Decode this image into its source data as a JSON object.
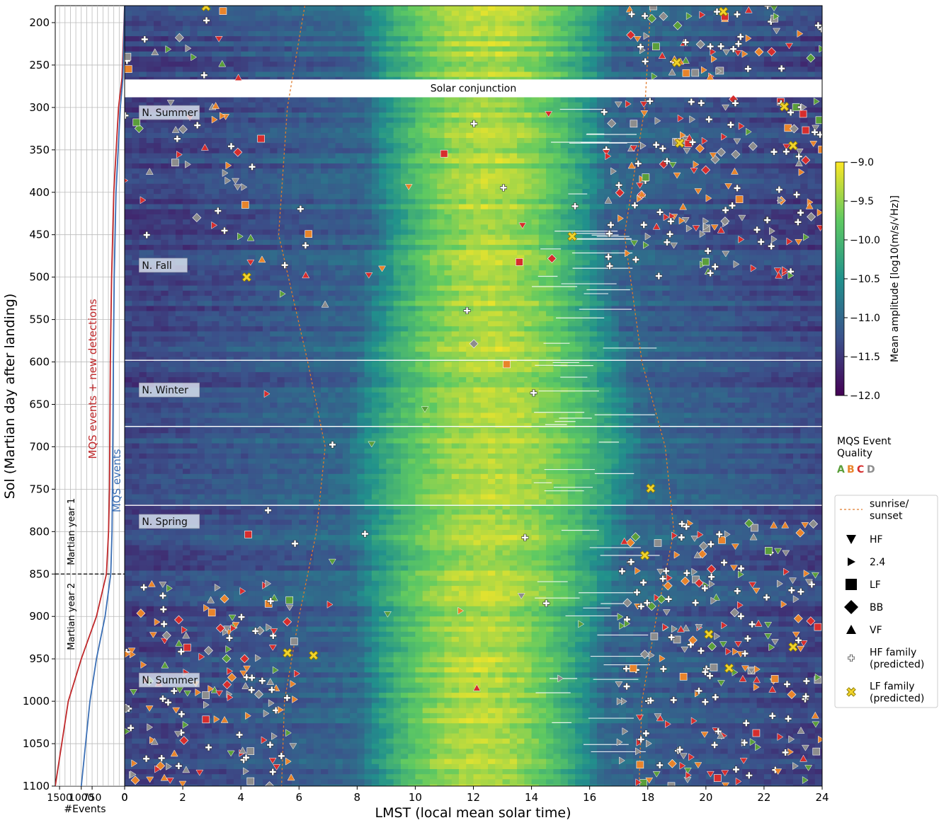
{
  "chart_data": [
    {
      "type": "heatmap",
      "title": "",
      "xlabel": "LMST (local mean solar time)",
      "ylabel": "Sol (Martian day after landing)",
      "xlim": [
        0,
        24
      ],
      "ylim": [
        1100,
        180
      ],
      "x_ticks": [
        0,
        2,
        4,
        6,
        8,
        10,
        12,
        14,
        16,
        18,
        20,
        22,
        24
      ],
      "y_ticks": [
        200,
        250,
        300,
        350,
        400,
        450,
        500,
        550,
        600,
        650,
        700,
        750,
        800,
        850,
        900,
        950,
        1000,
        1050,
        1100
      ],
      "colorbar": {
        "label": "Mean amplitude [log10(m/s/√Hz)]",
        "range": [
          -12.0,
          -9.0
        ],
        "ticks": [
          "-9.0",
          "-9.5",
          "-10.0",
          "-10.5",
          "-11.0",
          "-11.5",
          "-12.0"
        ],
        "colormap": [
          "#440154",
          "#3b528b",
          "#21918c",
          "#5ec962",
          "#fde725"
        ]
      },
      "quiet_window_lmst": {
        "at_sol_200": [
          8.0,
          17.0
        ],
        "at_sol_450": [
          8.5,
          16.5
        ],
        "at_sol_700": [
          7.5,
          18.0
        ],
        "at_sol_950": [
          8.0,
          16.5
        ]
      },
      "gaps": {
        "solar_conjunction_sols": [
          267,
          288
        ]
      },
      "annotations": [
        {
          "text": "Solar conjunction",
          "x": 12,
          "y": 277
        },
        {
          "text": "N. Summer",
          "x": 0.3,
          "y": 306
        },
        {
          "text": "N. Fall",
          "x": 0.3,
          "y": 486
        },
        {
          "text": "N. Winter",
          "x": 0.3,
          "y": 633
        },
        {
          "text": "N. Spring",
          "x": 0.3,
          "y": 788
        },
        {
          "text": "N. Summer",
          "x": 0.3,
          "y": 975
        }
      ],
      "sunrise_sunset": {
        "name": "sunrise/\nsunset",
        "color": "#e07a2a",
        "sol": [
          180,
          300,
          450,
          600,
          700,
          800,
          900,
          1000,
          1100
        ],
        "sunrise": [
          6.2,
          5.6,
          5.3,
          6.3,
          6.9,
          6.6,
          6.0,
          5.5,
          5.4
        ],
        "sunset": [
          18.1,
          17.9,
          17.2,
          17.8,
          18.6,
          18.9,
          18.3,
          17.8,
          17.7
        ]
      },
      "quality": {
        "title": "MQS Event\nQuality",
        "labels": [
          "A",
          "B",
          "C",
          "D"
        ],
        "colors": [
          "#5a9e3a",
          "#e8842b",
          "#d62d2d",
          "#8d8d8d"
        ]
      },
      "legend": [
        {
          "label": "sunrise/\nsunset",
          "marker": "dashed-line"
        },
        {
          "label": "HF",
          "marker": "triangle-down"
        },
        {
          "label": "2.4",
          "marker": "triangle-right"
        },
        {
          "label": "LF",
          "marker": "square"
        },
        {
          "label": "BB",
          "marker": "diamond"
        },
        {
          "label": "VF",
          "marker": "triangle-up"
        },
        {
          "label": "HF family\n(predicted)",
          "marker": "plus"
        },
        {
          "label": "LF family\n(predicted)",
          "marker": "x"
        }
      ],
      "lf_family_points": [
        [
          2.8,
          181
        ],
        [
          20.6,
          187
        ],
        [
          19.0,
          247
        ],
        [
          22.7,
          299
        ],
        [
          19.1,
          342
        ],
        [
          23.0,
          345
        ],
        [
          15.4,
          452
        ],
        [
          4.2,
          500
        ],
        [
          18.1,
          749
        ],
        [
          17.9,
          828
        ],
        [
          20.1,
          921
        ],
        [
          23.0,
          936
        ],
        [
          5.6,
          943
        ],
        [
          6.5,
          946
        ],
        [
          20.8,
          961
        ]
      ],
      "event_density_regions": [
        {
          "lmst": [
            17.0,
            24.0
          ],
          "sols": [
            180,
            265
          ],
          "density": "high"
        },
        {
          "lmst": [
            0.0,
            4.0
          ],
          "sols": [
            180,
            265
          ],
          "density": "medium"
        },
        {
          "lmst": [
            16.5,
            24.0
          ],
          "sols": [
            290,
            500
          ],
          "density": "high"
        },
        {
          "lmst": [
            0.0,
            5.0
          ],
          "sols": [
            290,
            460
          ],
          "density": "medium"
        },
        {
          "lmst": [
            17.0,
            24.0
          ],
          "sols": [
            790,
            1100
          ],
          "density": "high"
        },
        {
          "lmst": [
            0.0,
            6.0
          ],
          "sols": [
            860,
            1100
          ],
          "density": "high"
        }
      ]
    },
    {
      "type": "line",
      "xlabel": "#Events",
      "x_ticks": [
        "1500",
        "1000",
        "750",
        "0"
      ],
      "x_axis_reversed": true,
      "xlim": [
        1600,
        0
      ],
      "ylim": [
        1100,
        180
      ],
      "series": [
        {
          "name": "MQS events + new detections",
          "color": "#c0282a",
          "points": [
            [
              0,
              180
            ],
            [
              60,
              265
            ],
            [
              140,
              300
            ],
            [
              250,
              400
            ],
            [
              300,
              500
            ],
            [
              330,
              600
            ],
            [
              350,
              750
            ],
            [
              370,
              800
            ],
            [
              420,
              850
            ],
            [
              650,
              900
            ],
            [
              1000,
              950
            ],
            [
              1300,
              1000
            ],
            [
              1600,
              1100
            ]
          ]
        },
        {
          "name": "MQS events",
          "color": "#3b6fb5",
          "points": [
            [
              0,
              180
            ],
            [
              40,
              265
            ],
            [
              100,
              300
            ],
            [
              200,
              400
            ],
            [
              240,
              500
            ],
            [
              260,
              600
            ],
            [
              280,
              750
            ],
            [
              290,
              800
            ],
            [
              320,
              850
            ],
            [
              450,
              900
            ],
            [
              650,
              950
            ],
            [
              800,
              1000
            ],
            [
              1000,
              1100
            ]
          ]
        }
      ],
      "year_markers": {
        "boundary_sol": 850,
        "labels": [
          "Martian year 1",
          "Martian year 2"
        ]
      }
    }
  ]
}
